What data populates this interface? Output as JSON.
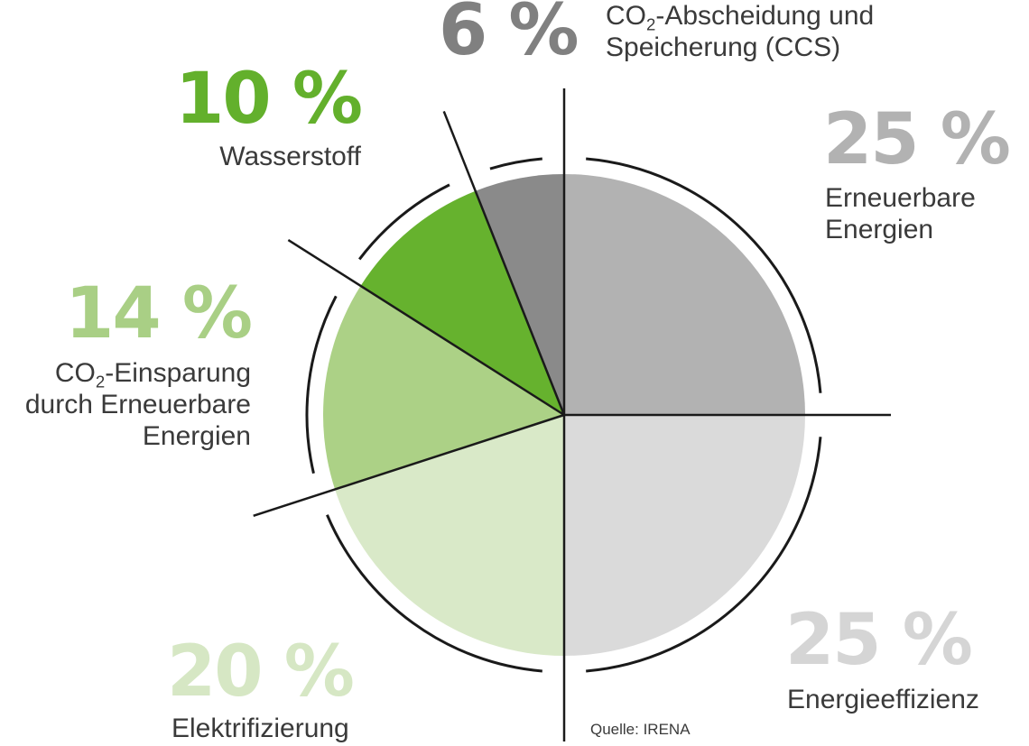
{
  "chart_data": {
    "type": "pie",
    "title": "",
    "unit": "%",
    "slices": [
      {
        "value": 25,
        "pct_label": "25 %",
        "label_prefix": "",
        "label_sub": "",
        "label_lines": [
          "Erneuerbare",
          "Energien"
        ],
        "color": "#b2b2b2",
        "pct_color": "#b2b2b2"
      },
      {
        "value": 25,
        "pct_label": "25 %",
        "label_prefix": "",
        "label_sub": "",
        "label_lines": [
          "Energieeffizienz"
        ],
        "color": "#dadada",
        "pct_color": "#d5d5d5"
      },
      {
        "value": 20,
        "pct_label": "20 %",
        "label_prefix": "",
        "label_sub": "",
        "label_lines": [
          "Elektrifizierung"
        ],
        "color": "#d9e9c8",
        "pct_color": "#d6e7c4"
      },
      {
        "value": 14,
        "pct_label": "14 %",
        "label_prefix": "CO",
        "label_sub": "2",
        "label_lines": [
          "-Einsparung",
          "durch Erneuerbare",
          "Energien"
        ],
        "color": "#acd186",
        "pct_color": "#a9cf85"
      },
      {
        "value": 10,
        "pct_label": "10 %",
        "label_prefix": "",
        "label_sub": "",
        "label_lines": [
          "Wasserstoff"
        ],
        "color": "#66b22e",
        "pct_color": "#63b02c"
      },
      {
        "value": 6,
        "pct_label": "6 %",
        "label_prefix": "CO",
        "label_sub": "2",
        "label_lines": [
          "-Abscheidung und",
          "Speicherung (CCS)"
        ],
        "color": "#8a8a8a",
        "pct_color": "#808080"
      }
    ],
    "source": "Quelle: IRENA"
  }
}
